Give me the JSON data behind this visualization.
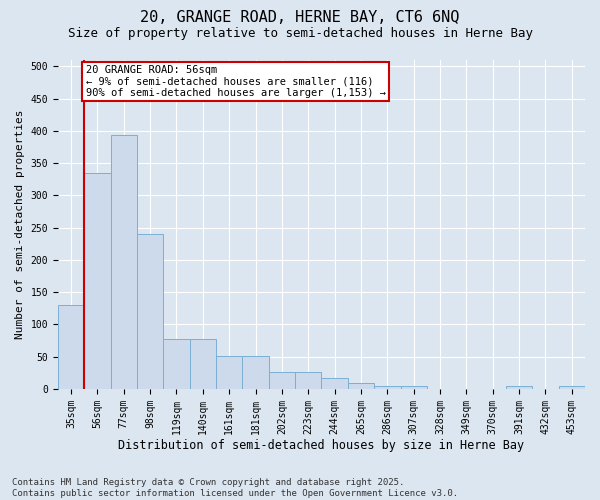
{
  "title1": "20, GRANGE ROAD, HERNE BAY, CT6 6NQ",
  "title2": "Size of property relative to semi-detached houses in Herne Bay",
  "xlabel": "Distribution of semi-detached houses by size in Herne Bay",
  "ylabel": "Number of semi-detached properties",
  "categories": [
    "35sqm",
    "56sqm",
    "77sqm",
    "98sqm",
    "119sqm",
    "140sqm",
    "161sqm",
    "181sqm",
    "202sqm",
    "223sqm",
    "244sqm",
    "265sqm",
    "286sqm",
    "307sqm",
    "328sqm",
    "349sqm",
    "370sqm",
    "391sqm",
    "432sqm",
    "453sqm"
  ],
  "values": [
    130,
    335,
    393,
    240,
    78,
    78,
    51,
    51,
    26,
    26,
    17,
    10,
    5,
    5,
    0,
    0,
    0,
    4,
    0,
    4
  ],
  "bar_color": "#cddaeb",
  "bar_edge_color": "#7aafd4",
  "vline_color": "#cc0000",
  "vline_x": 1,
  "annotation_text": "20 GRANGE ROAD: 56sqm\n← 9% of semi-detached houses are smaller (116)\n90% of semi-detached houses are larger (1,153) →",
  "annotation_box_color": "#ffffff",
  "annotation_box_edge": "#cc0000",
  "ylim": [
    0,
    510
  ],
  "yticks": [
    0,
    50,
    100,
    150,
    200,
    250,
    300,
    350,
    400,
    450,
    500
  ],
  "background_color": "#dce6f0",
  "plot_background": "#dce6f0",
  "grid_color": "#ffffff",
  "footnote": "Contains HM Land Registry data © Crown copyright and database right 2025.\nContains public sector information licensed under the Open Government Licence v3.0.",
  "title1_fontsize": 11,
  "title2_fontsize": 9,
  "xlabel_fontsize": 8.5,
  "ylabel_fontsize": 8,
  "tick_fontsize": 7,
  "annotation_fontsize": 7.5,
  "footnote_fontsize": 6.5
}
